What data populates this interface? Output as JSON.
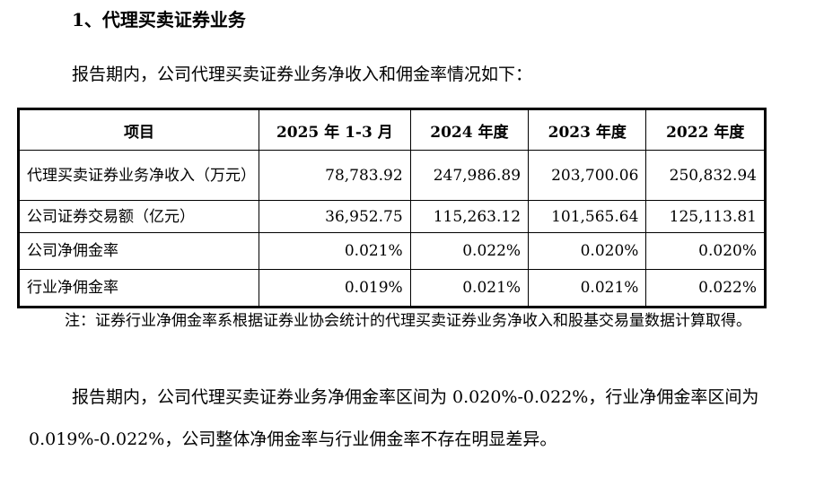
{
  "heading": "1、代理买卖证券业务",
  "intro": "报告期内，公司代理买卖证券业务净收入和佣金率情况如下：",
  "table": {
    "headers": [
      "项目",
      "2025 年 1-3 月",
      "2024 年度",
      "2023 年度",
      "2022 年度"
    ],
    "rows": [
      {
        "label": "代理买卖证券业务净收入（万元）",
        "values": [
          "78,783.92",
          "247,986.89",
          "203,700.06",
          "250,832.94"
        ]
      },
      {
        "label": "公司证券交易额（亿元）",
        "values": [
          "36,952.75",
          "115,263.12",
          "101,565.64",
          "125,113.81"
        ]
      },
      {
        "label": "公司净佣金率",
        "values": [
          "0.021%",
          "0.022%",
          "0.020%",
          "0.020%"
        ]
      },
      {
        "label": "行业净佣金率",
        "values": [
          "0.019%",
          "0.021%",
          "0.021%",
          "0.022%"
        ]
      }
    ]
  },
  "note": "注：证券行业净佣金率系根据证券业协会统计的代理买卖证券业务净收入和股基交易量数据计算取得。",
  "paragraph": "报告期内，公司代理买卖证券业务净佣金率区间为 0.020%-0.022%，行业净佣金率区间为 0.019%-0.022%，公司整体净佣金率与行业佣金率不存在明显差异。"
}
